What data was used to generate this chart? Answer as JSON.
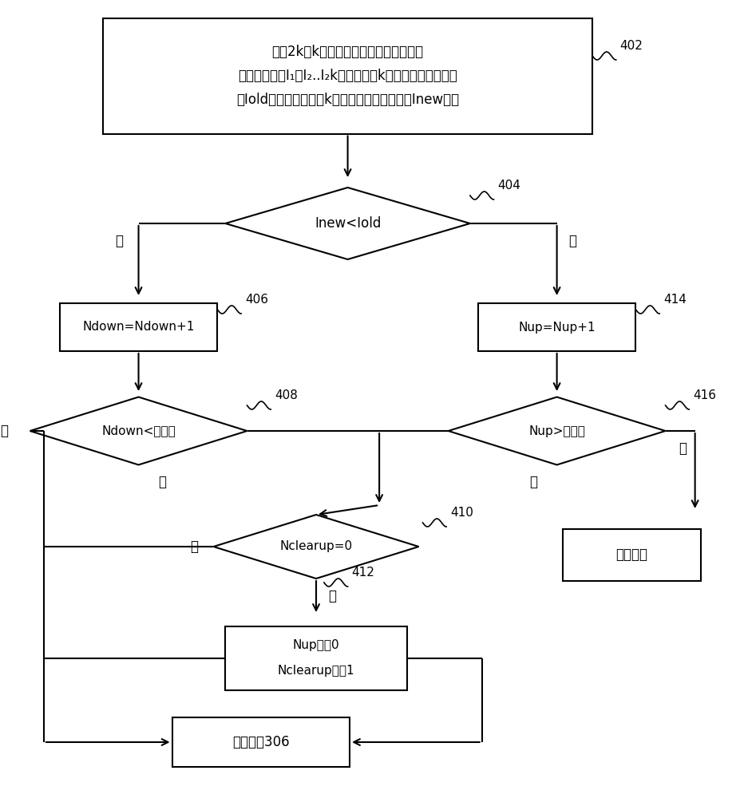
{
  "bg_color": "#ffffff",
  "line_color": "#000000",
  "text_color": "#000000",
  "box1_line1": "存储2k（k是自然数）个时间上相邻的室",
  "box1_line2": "外风机电流值I₁，I₂..I₂k，计算出前k个电流值的平均值，",
  "box1_line3": "用Iold表示，计算出后k个电流值的平均值，用Inew表示",
  "diamond1_text": "Inew<Iold",
  "box_ndown_text": "Ndown=Ndown+1",
  "box_nup_text": "Nup=Nup+1",
  "diamond2_text": "Ndown<预设值",
  "diamond3_text": "Nup>预设值",
  "diamond4_text": "Nclearup=0",
  "box_reset_line1": "Nup改为0",
  "box_reset_line2": "Nclearup改为1",
  "box_defrost_text": "开始除霜",
  "box_return_text": "返回步骤306",
  "label_402": "402",
  "label_404": "404",
  "label_406": "406",
  "label_408": "408",
  "label_410": "410",
  "label_412": "412",
  "label_414": "414",
  "label_416": "416",
  "yes": "是",
  "no": "否"
}
